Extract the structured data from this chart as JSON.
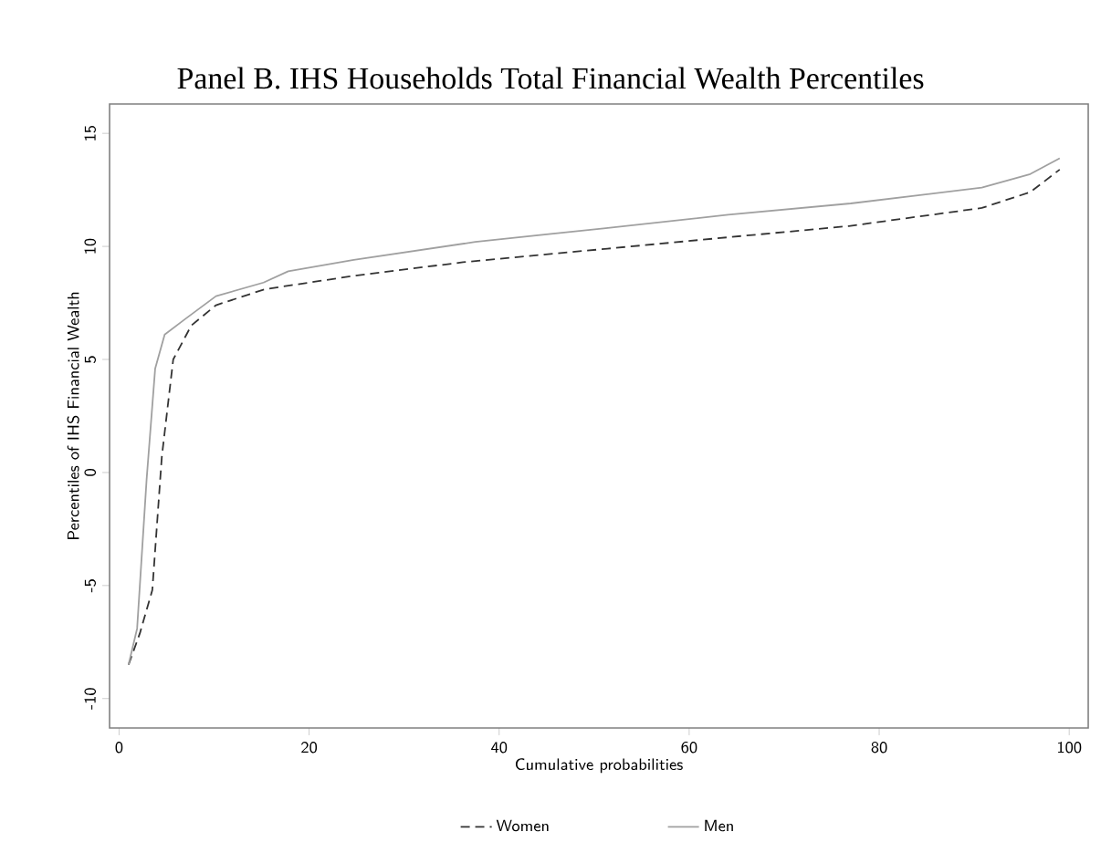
{
  "chart_data": {
    "type": "line",
    "title": "Panel B. IHS Households Total Financial Wealth Percentiles",
    "xlabel": "Cumulative probabilities",
    "ylabel": "Percentiles of IHS Financial Wealth",
    "xlim": [
      -1,
      102
    ],
    "ylim": [
      -11.3,
      16.3
    ],
    "xticks": [
      0,
      20,
      40,
      60,
      80,
      100
    ],
    "yticks": [
      -10,
      -5,
      0,
      5,
      10,
      15
    ],
    "grid": false,
    "legend": "bottom",
    "series": [
      {
        "name": "Women",
        "color": "#333333",
        "line_style": "dashed",
        "x": [
          1,
          2.2,
          3.5,
          4.5,
          5.7,
          7.6,
          10.2,
          15.3,
          24.7,
          36.2,
          51.4,
          64,
          76.8,
          90.8,
          95.9,
          99
        ],
        "values": [
          -8.5,
          -7.1,
          -5.2,
          0.7,
          5.0,
          6.5,
          7.4,
          8.1,
          8.7,
          9.3,
          9.9,
          10.4,
          10.9,
          11.7,
          12.4,
          13.4
        ]
      },
      {
        "name": "Men",
        "color": "#a0a0a0",
        "line_style": "solid",
        "x": [
          1,
          1.9,
          2.9,
          3.8,
          4.8,
          7,
          10.2,
          15.2,
          17.8,
          24.7,
          37.5,
          51,
          64.1,
          77,
          90.8,
          95.9,
          99
        ],
        "values": [
          -8.5,
          -6.9,
          -0.3,
          4.6,
          6.1,
          6.8,
          7.8,
          8.4,
          8.9,
          9.4,
          10.2,
          10.8,
          11.4,
          11.9,
          12.6,
          13.2,
          13.9
        ]
      }
    ]
  }
}
